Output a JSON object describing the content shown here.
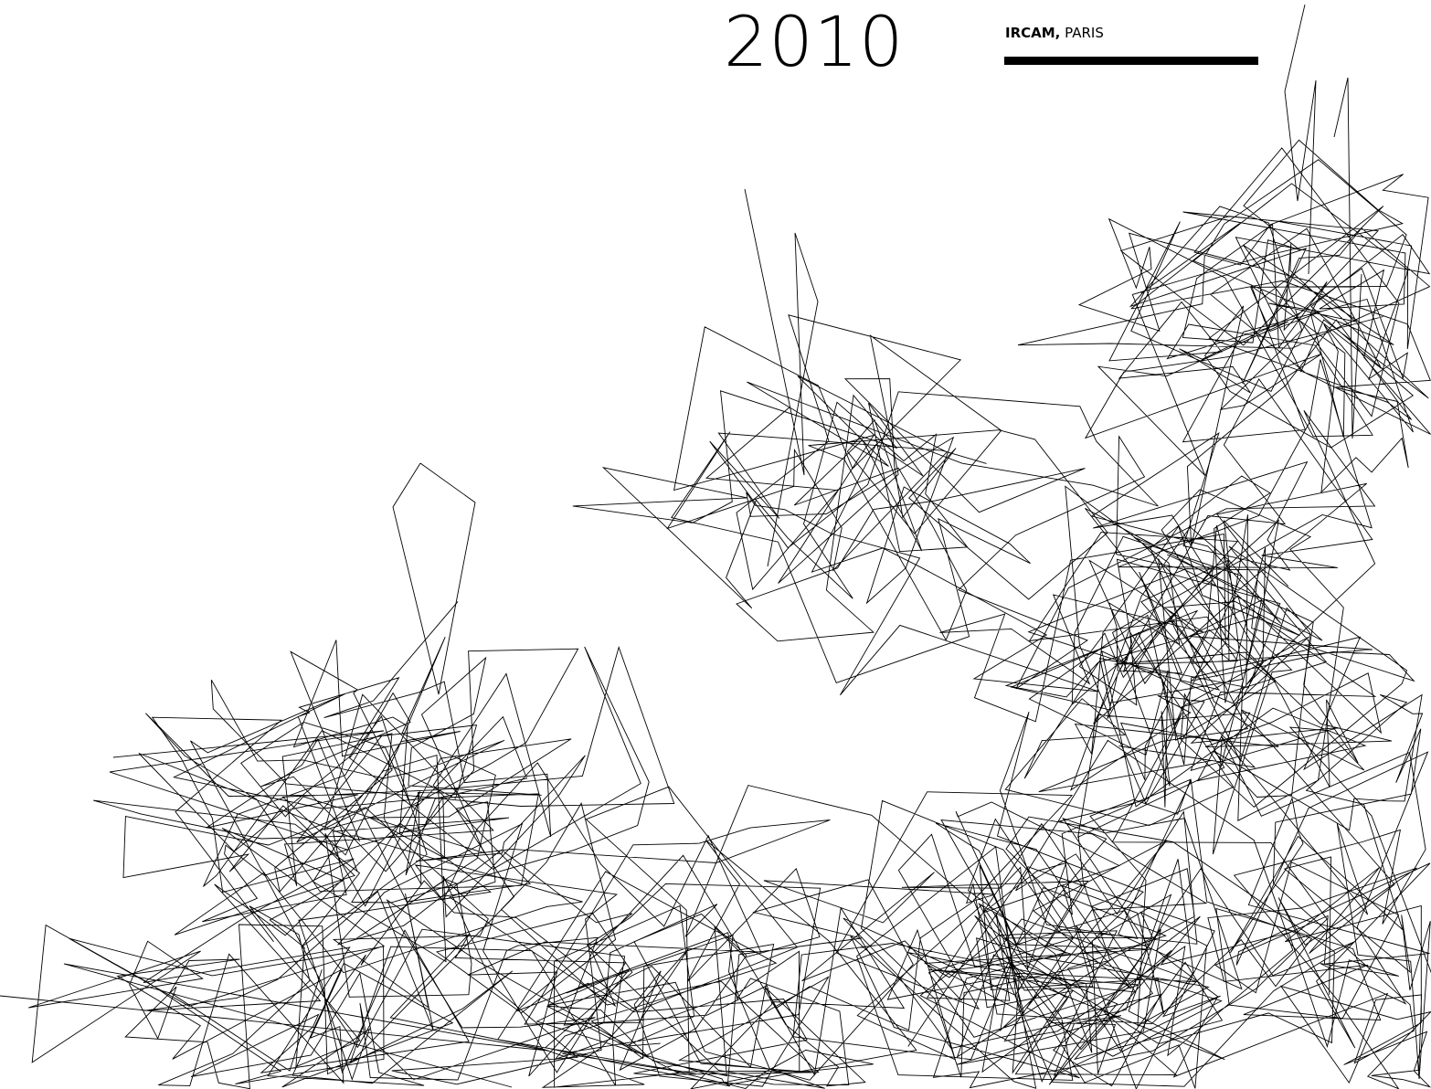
{
  "header": {
    "year": "2010",
    "venue_org": "IRCAM,",
    "venue_city": "PARIS"
  },
  "artwork": {
    "stroke_color": "#000000",
    "background_color": "#ffffff",
    "name": "generative-line-scribble"
  }
}
